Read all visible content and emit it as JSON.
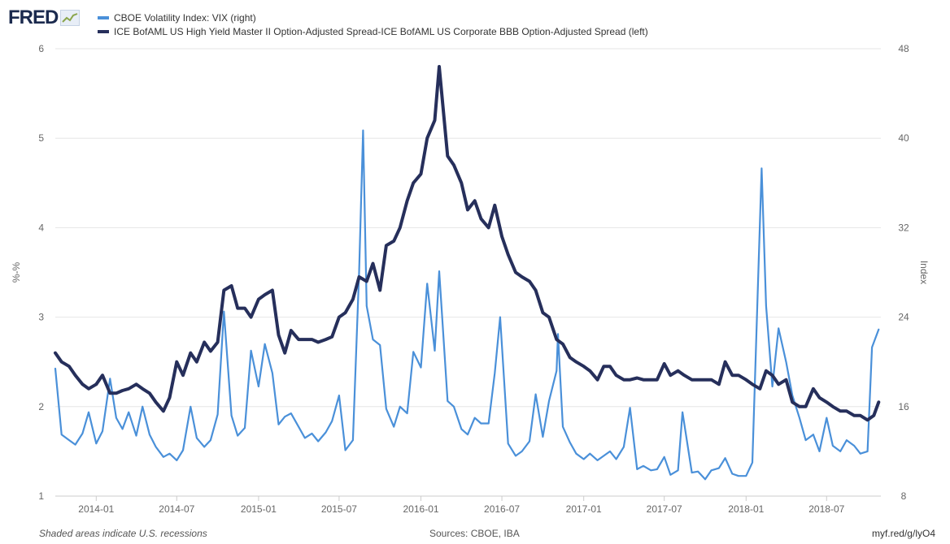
{
  "header": {
    "logo_text": "FRED",
    "logo_icon": "line-graph-icon"
  },
  "footer": {
    "note": "Shaded areas indicate U.S. recessions",
    "source": "Sources: CBOE, IBA",
    "link": "myf.red/g/lyO4"
  },
  "chart_data": {
    "type": "line",
    "title": "",
    "grid": true,
    "legend": "top-left",
    "x_range": [
      "2013-10-01",
      "2018-10-31"
    ],
    "x_ticks": [
      "2014-01",
      "2014-07",
      "2015-01",
      "2015-07",
      "2016-01",
      "2016-07",
      "2017-01",
      "2017-07",
      "2018-01",
      "2018-07"
    ],
    "left_axis": {
      "label": "%-%",
      "ylim": [
        1,
        6
      ],
      "ticks": [
        1,
        2,
        3,
        4,
        5,
        6
      ]
    },
    "right_axis": {
      "label": "Index",
      "ylim": [
        8,
        48
      ],
      "ticks": [
        8,
        16,
        24,
        32,
        40,
        48
      ]
    },
    "series": [
      {
        "name": "CBOE Volatility Index: VIX (right)",
        "axis": "right",
        "color": "#4a90d9",
        "x": [
          "2013-10-01",
          "2013-10-15",
          "2013-11-01",
          "2013-11-15",
          "2013-12-01",
          "2013-12-15",
          "2014-01-01",
          "2014-01-15",
          "2014-02-01",
          "2014-02-15",
          "2014-03-01",
          "2014-03-15",
          "2014-04-01",
          "2014-04-15",
          "2014-05-01",
          "2014-05-15",
          "2014-06-01",
          "2014-06-15",
          "2014-07-01",
          "2014-07-15",
          "2014-08-01",
          "2014-08-15",
          "2014-09-01",
          "2014-09-15",
          "2014-10-01",
          "2014-10-15",
          "2014-11-01",
          "2014-11-15",
          "2014-12-01",
          "2014-12-15",
          "2015-01-01",
          "2015-01-15",
          "2015-02-01",
          "2015-02-15",
          "2015-03-01",
          "2015-03-15",
          "2015-04-01",
          "2015-04-15",
          "2015-05-01",
          "2015-05-15",
          "2015-06-01",
          "2015-06-15",
          "2015-07-01",
          "2015-07-15",
          "2015-08-01",
          "2015-08-15",
          "2015-08-24",
          "2015-09-01",
          "2015-09-15",
          "2015-10-01",
          "2015-10-15",
          "2015-11-01",
          "2015-11-15",
          "2015-12-01",
          "2015-12-15",
          "2016-01-01",
          "2016-01-15",
          "2016-02-01",
          "2016-02-11",
          "2016-03-01",
          "2016-03-15",
          "2016-04-01",
          "2016-04-15",
          "2016-05-01",
          "2016-05-15",
          "2016-06-01",
          "2016-06-15",
          "2016-06-27",
          "2016-07-15",
          "2016-08-01",
          "2016-08-15",
          "2016-09-01",
          "2016-09-15",
          "2016-10-01",
          "2016-10-15",
          "2016-11-01",
          "2016-11-04",
          "2016-11-15",
          "2016-12-01",
          "2016-12-15",
          "2017-01-01",
          "2017-01-15",
          "2017-02-01",
          "2017-02-15",
          "2017-03-01",
          "2017-03-15",
          "2017-04-01",
          "2017-04-15",
          "2017-05-01",
          "2017-05-15",
          "2017-06-01",
          "2017-06-15",
          "2017-07-01",
          "2017-07-15",
          "2017-08-01",
          "2017-08-11",
          "2017-09-01",
          "2017-09-15",
          "2017-10-01",
          "2017-10-15",
          "2017-11-01",
          "2017-11-15",
          "2017-12-01",
          "2017-12-15",
          "2018-01-01",
          "2018-01-15",
          "2018-02-05",
          "2018-02-15",
          "2018-03-01",
          "2018-03-15",
          "2018-04-01",
          "2018-04-15",
          "2018-05-01",
          "2018-05-15",
          "2018-06-01",
          "2018-06-15",
          "2018-07-01",
          "2018-07-15",
          "2018-08-01",
          "2018-08-15",
          "2018-09-01",
          "2018-09-15",
          "2018-10-01",
          "2018-10-11",
          "2018-10-26"
        ],
        "values": [
          19.4,
          13.5,
          13.0,
          12.6,
          13.6,
          15.5,
          12.7,
          13.8,
          18.5,
          15.0,
          14.0,
          15.5,
          13.4,
          16.0,
          13.5,
          12.4,
          11.5,
          11.8,
          11.2,
          12.1,
          16.0,
          13.2,
          12.4,
          13.0,
          15.3,
          24.5,
          15.2,
          13.4,
          14.1,
          21.0,
          17.8,
          21.6,
          19.0,
          14.4,
          15.1,
          15.4,
          14.2,
          13.2,
          13.6,
          12.9,
          13.7,
          14.7,
          17.0,
          12.1,
          13.0,
          28.0,
          40.7,
          25.0,
          22.0,
          21.5,
          15.8,
          14.2,
          16.0,
          15.4,
          20.9,
          19.5,
          27.0,
          21.0,
          28.1,
          16.5,
          16.0,
          14.0,
          13.5,
          15.0,
          14.5,
          14.5,
          19.0,
          24.0,
          12.7,
          11.6,
          12.0,
          12.9,
          17.1,
          13.3,
          16.5,
          19.2,
          22.5,
          14.2,
          12.8,
          11.8,
          11.3,
          11.8,
          11.2,
          11.6,
          12.0,
          11.3,
          12.4,
          15.9,
          10.4,
          10.7,
          10.3,
          10.4,
          11.5,
          9.9,
          10.3,
          15.5,
          10.1,
          10.2,
          9.5,
          10.3,
          10.5,
          11.4,
          10.0,
          9.8,
          9.8,
          11.0,
          37.3,
          25.0,
          17.8,
          23.0,
          20.0,
          17.0,
          15.0,
          13.0,
          13.5,
          12.0,
          15.0,
          12.5,
          12.0,
          13.0,
          12.5,
          11.8,
          12.0,
          21.3,
          22.9
        ]
      },
      {
        "name": "ICE BofAML US High Yield Master II Option-Adjusted Spread-ICE BofAML US Corporate BBB Option-Adjusted Spread (left)",
        "axis": "left",
        "color": "#262f5b",
        "x": [
          "2013-10-01",
          "2013-10-15",
          "2013-11-01",
          "2013-11-15",
          "2013-12-01",
          "2013-12-15",
          "2014-01-01",
          "2014-01-15",
          "2014-02-01",
          "2014-02-15",
          "2014-03-01",
          "2014-03-15",
          "2014-04-01",
          "2014-04-15",
          "2014-05-01",
          "2014-05-15",
          "2014-06-01",
          "2014-06-15",
          "2014-07-01",
          "2014-07-15",
          "2014-08-01",
          "2014-08-15",
          "2014-09-01",
          "2014-09-15",
          "2014-10-01",
          "2014-10-15",
          "2014-11-01",
          "2014-11-15",
          "2014-12-01",
          "2014-12-15",
          "2015-01-01",
          "2015-01-15",
          "2015-02-01",
          "2015-02-15",
          "2015-03-01",
          "2015-03-15",
          "2015-04-01",
          "2015-04-15",
          "2015-05-01",
          "2015-05-15",
          "2015-06-01",
          "2015-06-15",
          "2015-07-01",
          "2015-07-15",
          "2015-08-01",
          "2015-08-15",
          "2015-09-01",
          "2015-09-15",
          "2015-10-01",
          "2015-10-15",
          "2015-11-01",
          "2015-11-15",
          "2015-12-01",
          "2015-12-15",
          "2016-01-01",
          "2016-01-15",
          "2016-02-01",
          "2016-02-11",
          "2016-03-01",
          "2016-03-15",
          "2016-04-01",
          "2016-04-15",
          "2016-05-01",
          "2016-05-15",
          "2016-06-01",
          "2016-06-15",
          "2016-07-01",
          "2016-07-15",
          "2016-08-01",
          "2016-08-15",
          "2016-09-01",
          "2016-09-15",
          "2016-10-01",
          "2016-10-15",
          "2016-11-01",
          "2016-11-15",
          "2016-12-01",
          "2016-12-15",
          "2017-01-01",
          "2017-01-15",
          "2017-02-01",
          "2017-02-15",
          "2017-03-01",
          "2017-03-15",
          "2017-04-01",
          "2017-04-15",
          "2017-05-01",
          "2017-05-15",
          "2017-06-01",
          "2017-06-15",
          "2017-07-01",
          "2017-07-15",
          "2017-08-01",
          "2017-08-15",
          "2017-09-01",
          "2017-09-15",
          "2017-10-01",
          "2017-10-15",
          "2017-11-01",
          "2017-11-15",
          "2017-12-01",
          "2017-12-15",
          "2018-01-01",
          "2018-01-15",
          "2018-02-01",
          "2018-02-15",
          "2018-03-01",
          "2018-03-15",
          "2018-04-01",
          "2018-04-15",
          "2018-05-01",
          "2018-05-15",
          "2018-06-01",
          "2018-06-15",
          "2018-07-01",
          "2018-07-15",
          "2018-08-01",
          "2018-08-15",
          "2018-09-01",
          "2018-09-15",
          "2018-10-01",
          "2018-10-15",
          "2018-10-26"
        ],
        "values": [
          2.6,
          2.5,
          2.45,
          2.35,
          2.25,
          2.2,
          2.25,
          2.35,
          2.15,
          2.15,
          2.18,
          2.2,
          2.25,
          2.2,
          2.15,
          2.05,
          1.95,
          2.1,
          2.5,
          2.35,
          2.6,
          2.5,
          2.72,
          2.62,
          2.72,
          3.3,
          3.35,
          3.1,
          3.1,
          3.0,
          3.2,
          3.25,
          3.3,
          2.8,
          2.6,
          2.85,
          2.75,
          2.75,
          2.75,
          2.72,
          2.75,
          2.78,
          3.0,
          3.05,
          3.2,
          3.45,
          3.4,
          3.6,
          3.3,
          3.8,
          3.85,
          4.0,
          4.3,
          4.5,
          4.6,
          5.0,
          5.2,
          5.8,
          4.8,
          4.7,
          4.5,
          4.2,
          4.3,
          4.1,
          4.0,
          4.25,
          3.9,
          3.7,
          3.5,
          3.45,
          3.4,
          3.3,
          3.05,
          3.0,
          2.75,
          2.7,
          2.55,
          2.5,
          2.45,
          2.4,
          2.3,
          2.45,
          2.45,
          2.35,
          2.3,
          2.3,
          2.32,
          2.3,
          2.3,
          2.3,
          2.48,
          2.35,
          2.4,
          2.35,
          2.3,
          2.3,
          2.3,
          2.3,
          2.25,
          2.5,
          2.35,
          2.35,
          2.3,
          2.25,
          2.2,
          2.4,
          2.35,
          2.25,
          2.3,
          2.05,
          2.0,
          2.0,
          2.2,
          2.1,
          2.05,
          2.0,
          1.95,
          1.95,
          1.9,
          1.9,
          1.85,
          1.9,
          2.05
        ]
      }
    ]
  }
}
